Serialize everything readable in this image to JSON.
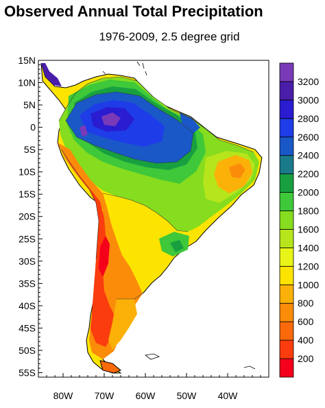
{
  "title": "Observed Annual Total Precipitation",
  "subtitle": "1976-2009, 2.5 degree grid",
  "map": {
    "lat_labels": [
      "15N",
      "10N",
      "5N",
      "0",
      "5S",
      "10S",
      "15S",
      "20S",
      "25S",
      "30S",
      "35S",
      "40S",
      "45S",
      "50S",
      "55S"
    ],
    "lat_values": [
      15,
      10,
      5,
      0,
      -5,
      -10,
      -15,
      -20,
      -25,
      -30,
      -35,
      -40,
      -45,
      -50,
      -55
    ],
    "lon_labels": [
      "80W",
      "70W",
      "60W",
      "50W",
      "40W"
    ],
    "lon_values": [
      -80,
      -70,
      -60,
      -50,
      -40
    ],
    "lon_range": [
      -86,
      -30
    ],
    "lat_range": [
      -56,
      15
    ]
  },
  "colorbar": {
    "labels": [
      "200",
      "400",
      "600",
      "800",
      "1000",
      "1200",
      "1400",
      "1600",
      "1800",
      "2000",
      "2200",
      "2400",
      "2600",
      "2800",
      "3000",
      "3200"
    ],
    "colors": [
      "#f4001a",
      "#fa3c0e",
      "#fb6a0a",
      "#fb8c0a",
      "#fbb108",
      "#fde400",
      "#e9f418",
      "#b6e51c",
      "#86dc1e",
      "#3ec83a",
      "#18a040",
      "#1a7a8a",
      "#1a58c8",
      "#1e3ce8",
      "#2a1cd0",
      "#4a1ea8",
      "#7a3ab8"
    ]
  }
}
